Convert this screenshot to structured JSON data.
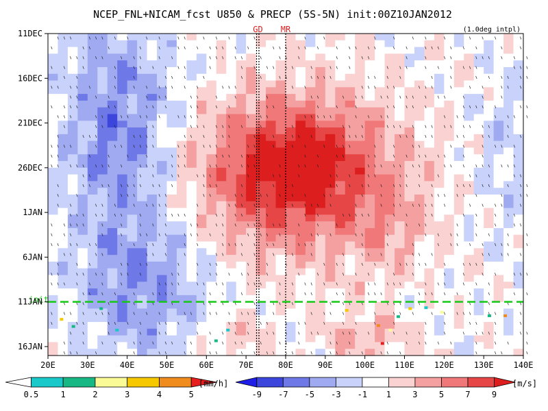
{
  "chart_data": {
    "type": "heatmap",
    "title": "NCEP_FNL+NICAM_fcst U850 & PRECP (5S-5N) init:00Z10JAN2012",
    "subtitle": "(1.0deg intpl)",
    "x_ticks": [
      "20E",
      "30E",
      "40E",
      "50E",
      "60E",
      "70E",
      "80E",
      "90E",
      "100E",
      "110E",
      "120E",
      "130E",
      "140E"
    ],
    "x_range": [
      20,
      140
    ],
    "y_ticks": [
      "11DEC",
      "16DEC",
      "21DEC",
      "26DEC",
      "1JAN",
      "6JAN",
      "11JAN",
      "16JAN"
    ],
    "y_range_days": [
      0,
      36
    ],
    "init_label": "init",
    "init_day": 30,
    "markers": [
      {
        "label": "GD",
        "lon": 73
      },
      {
        "label": "MR",
        "lon": 80
      }
    ],
    "precip_colorbar": {
      "unit": "[mm/h]",
      "tick_labels": [
        "0.5",
        "1",
        "2",
        "3",
        "4",
        "5"
      ],
      "colors": [
        "#ffffff",
        "#19c8c8",
        "#18b884",
        "#fafa96",
        "#f5c800",
        "#f08c1e",
        "#e61e1e"
      ]
    },
    "wind_colorbar": {
      "unit": "[m/s]",
      "tick_labels": [
        "-9",
        "-7",
        "-5",
        "-3",
        "-1",
        "1",
        "3",
        "5",
        "7",
        "9"
      ],
      "colors": [
        "#1e1ee6",
        "#3c46dc",
        "#6e78e6",
        "#a0aaf0",
        "#c8d2fa",
        "#ffffff",
        "#fad2d2",
        "#f5a0a0",
        "#f07878",
        "#e64646",
        "#dc1e1e"
      ]
    }
  },
  "colors": {
    "init_line": "#14c814",
    "marker_label": "#dc1e1e"
  }
}
